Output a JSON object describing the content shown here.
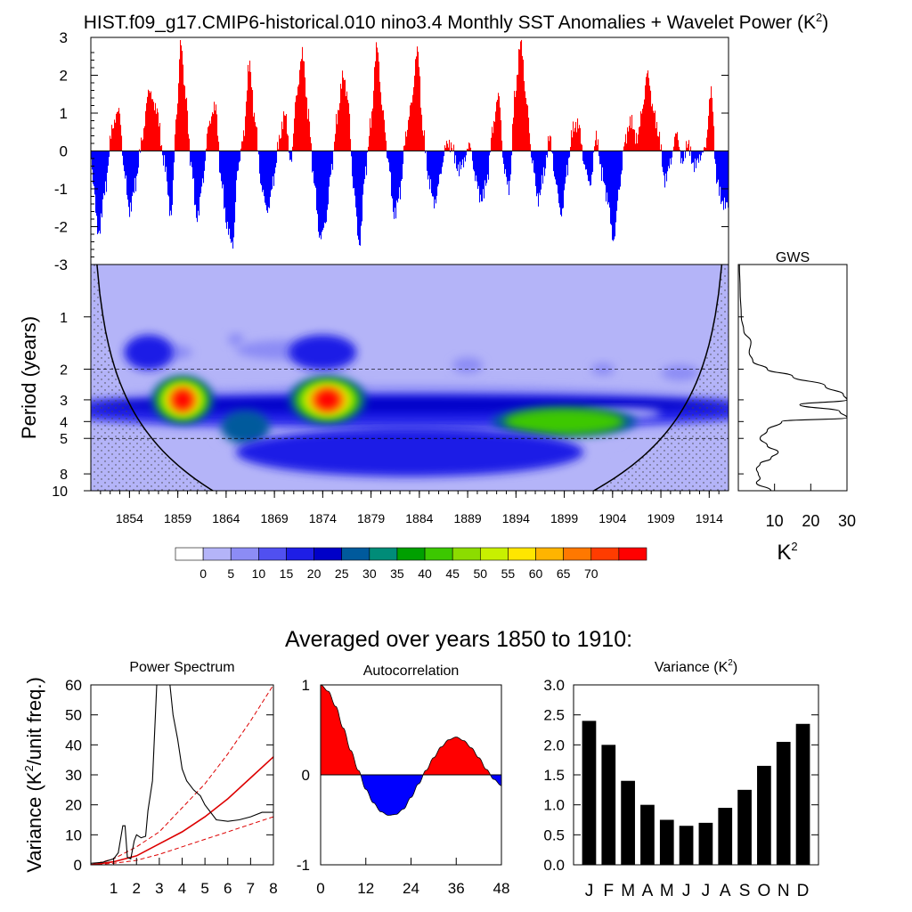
{
  "figure": {
    "title": "HIST.f09_g17.CMIP6-historical.010 nino3.4 Monthly SST Anomalies + Wavelet Power (K",
    "title_sup": "2",
    "title_close": ")",
    "subtitle": "Averaged over years 1850 to 1910:"
  },
  "colors": {
    "positive": "#ff0000",
    "negative": "#0000ff",
    "cone": "#000000",
    "fit_red": "#dd0000"
  },
  "chart_data": [
    {
      "type": "bar",
      "name": "anomaly-timeseries",
      "x_start": 1850,
      "x_end": 1916,
      "ylim": [
        -3,
        3
      ],
      "yticks": [
        "3",
        "2",
        "1",
        "0",
        "-1",
        "-2",
        "-3"
      ],
      "y_tick_values": [
        3,
        2,
        1,
        0,
        -1,
        -2,
        -3
      ],
      "grid": false,
      "values_x": [
        1850.2,
        1850.8,
        1851.5,
        1852.2,
        1852.9,
        1853.5,
        1854.0,
        1854.6,
        1855.3,
        1856.0,
        1856.8,
        1857.6,
        1858.3,
        1858.9,
        1859.3,
        1859.8,
        1860.4,
        1861.0,
        1861.6,
        1862.2,
        1862.9,
        1863.5,
        1864.1,
        1864.7,
        1865.2,
        1865.8,
        1866.4,
        1867.0,
        1867.7,
        1868.3,
        1868.9,
        1869.5,
        1870.1,
        1870.7,
        1871.3,
        1871.9,
        1872.5,
        1873.1,
        1873.7,
        1874.3,
        1874.9,
        1875.5,
        1876.1,
        1876.6,
        1877.2,
        1877.8,
        1878.4,
        1879.0,
        1879.6,
        1880.2,
        1880.8,
        1881.4,
        1882.0,
        1882.6,
        1883.2,
        1883.8,
        1884.4,
        1885.0,
        1885.6,
        1886.2,
        1886.8,
        1887.4,
        1888.0,
        1888.6,
        1889.2,
        1889.8,
        1890.4,
        1891.0,
        1891.6,
        1892.2,
        1892.8,
        1893.3,
        1893.9,
        1894.5,
        1895.1,
        1895.7,
        1896.3,
        1896.9,
        1897.5,
        1898.1,
        1898.7,
        1899.3,
        1899.9,
        1900.5,
        1901.1,
        1901.7,
        1902.3,
        1902.9,
        1903.5,
        1904.1,
        1904.7,
        1905.3,
        1905.9,
        1906.5,
        1907.1,
        1907.6,
        1908.2,
        1908.8,
        1909.4,
        1910.0,
        1910.6,
        1911.2,
        1911.8,
        1912.4,
        1913.0,
        1913.6,
        1914.2,
        1914.8,
        1915.4
      ],
      "values_y": [
        -0.8,
        -2.2,
        -1.0,
        0.6,
        1.1,
        -0.6,
        -1.6,
        -0.9,
        0.3,
        1.6,
        1.1,
        -0.3,
        -1.7,
        1.0,
        2.9,
        1.5,
        -0.4,
        -1.8,
        -0.8,
        0.7,
        1.2,
        -0.8,
        -2.0,
        -2.5,
        -0.5,
        0.4,
        2.3,
        0.8,
        -1.0,
        -1.6,
        -0.8,
        0.3,
        1.0,
        -0.3,
        1.5,
        2.6,
        1.0,
        -0.8,
        -2.3,
        -1.9,
        -0.5,
        0.9,
        2.0,
        1.4,
        -1.0,
        -2.5,
        -0.6,
        0.8,
        2.8,
        1.1,
        -0.3,
        -1.7,
        -1.1,
        0.4,
        1.3,
        2.7,
        0.5,
        -0.8,
        -1.4,
        -0.6,
        0.2,
        0.1,
        -0.5,
        -0.3,
        0.2,
        -0.7,
        -1.3,
        -0.8,
        0.6,
        1.5,
        -0.5,
        -1.0,
        1.5,
        2.9,
        1.3,
        -0.3,
        -1.3,
        -0.6,
        0.4,
        -0.8,
        -1.7,
        -0.5,
        0.6,
        0.7,
        -0.4,
        -0.9,
        0.4,
        -0.6,
        -1.3,
        -2.4,
        -1.0,
        0.3,
        0.8,
        0.3,
        1.1,
        2.1,
        1.1,
        0.4,
        -0.8,
        -0.3,
        0.5,
        -0.3,
        0.2,
        -0.4,
        -0.2,
        0.1,
        1.6,
        -0.8,
        -1.4
      ]
    },
    {
      "type": "heatmap",
      "name": "wavelet-power",
      "ylabel": "Period (years)",
      "xticks": [
        "1854",
        "1859",
        "1864",
        "1869",
        "1874",
        "1879",
        "1884",
        "1889",
        "1894",
        "1899",
        "1904",
        "1909",
        "1914"
      ],
      "x_tick_values": [
        1854,
        1859,
        1864,
        1869,
        1874,
        1879,
        1884,
        1889,
        1894,
        1899,
        1904,
        1909,
        1914
      ],
      "yticks": [
        "1",
        "2",
        "3",
        "4",
        "5",
        "8",
        "10"
      ],
      "y_tick_values": [
        1,
        2,
        3,
        4,
        5,
        8,
        10
      ],
      "ylim": [
        0.5,
        10
      ],
      "y_scale": "log-reversed",
      "background_level": 0,
      "features": [
        {
          "x": 1859.5,
          "period": 3.0,
          "wx": 3.2,
          "wy": 0.09,
          "power": 72
        },
        {
          "x": 1874.5,
          "period": 3.0,
          "wx": 4.0,
          "wy": 0.09,
          "power": 74
        },
        {
          "x": 1866,
          "period": 4.3,
          "wx": 2.5,
          "wy": 0.06,
          "power": 30
        },
        {
          "x": 1899,
          "period": 4.0,
          "wx": 7.5,
          "wy": 0.05,
          "power": 42
        },
        {
          "x": 1856,
          "period": 1.6,
          "wx": 2.5,
          "wy": 0.07,
          "power": 14
        },
        {
          "x": 1874,
          "period": 1.6,
          "wx": 3.5,
          "wy": 0.07,
          "power": 14
        },
        {
          "x": 1883,
          "period": 6.0,
          "wx": 18,
          "wy": 0.1,
          "power": 14
        }
      ]
    },
    {
      "type": "line",
      "name": "global-wavelet-spectrum",
      "title": "GWS",
      "xlabel": "K",
      "xlabel_sup": "2",
      "xticks": [
        "10",
        "20",
        "30"
      ],
      "x_tick_values": [
        10,
        20,
        30
      ],
      "xlim": [
        0,
        30
      ],
      "periods": [
        0.5,
        0.7,
        1.0,
        1.2,
        1.4,
        1.6,
        1.8,
        2.0,
        2.2,
        2.5,
        2.8,
        3.0,
        3.2,
        3.5,
        3.8,
        4.0,
        4.5,
        5.0,
        5.5,
        6.0,
        6.5,
        7.0,
        7.5,
        8.0,
        8.5,
        9.0,
        10.0
      ],
      "power": [
        0.3,
        0.5,
        0.8,
        1.5,
        3.5,
        3.0,
        4.0,
        8.0,
        15.0,
        24.0,
        29.0,
        30.0,
        17.0,
        28.0,
        30.0,
        12.0,
        8.0,
        6.0,
        8.0,
        11.0,
        9.0,
        6.0,
        5.0,
        5.5,
        6.0,
        5.0,
        9.0
      ]
    },
    {
      "type": "line",
      "name": "power-spectrum",
      "title": "Power Spectrum",
      "ylabel": "Variance (K",
      "ylabel_sup": "2",
      "ylabel_close": "/unit freq.)",
      "xticks": [
        "1",
        "2",
        "3",
        "4",
        "5",
        "6",
        "7",
        "8"
      ],
      "x_tick_values": [
        1,
        2,
        3,
        4,
        5,
        6,
        7,
        8
      ],
      "yticks": [
        "0",
        "10",
        "20",
        "30",
        "40",
        "50",
        "60"
      ],
      "y_tick_values": [
        0,
        10,
        20,
        30,
        40,
        50,
        60
      ],
      "xlim": [
        0,
        8
      ],
      "ylim": [
        0,
        60
      ],
      "x": [
        0.0,
        0.5,
        1.0,
        1.2,
        1.4,
        1.5,
        1.6,
        1.75,
        1.9,
        2.0,
        2.2,
        2.4,
        2.5,
        2.7,
        2.9,
        3.0,
        3.2,
        3.4,
        3.6,
        3.8,
        4.0,
        4.2,
        4.5,
        4.8,
        5.0,
        5.5,
        6.0,
        6.5,
        7.0,
        7.5,
        8.0
      ],
      "y": [
        0.5,
        0.8,
        2.0,
        4.0,
        13.0,
        13.0,
        2.5,
        2.0,
        8.0,
        10.0,
        9.0,
        9.5,
        18.0,
        28.0,
        62.0,
        80.0,
        80.0,
        65.0,
        50.0,
        42.0,
        32.0,
        28.0,
        25.0,
        23.0,
        20.0,
        15.0,
        14.5,
        15.0,
        16.0,
        17.5,
        17.5
      ],
      "fit_mid": {
        "x": [
          0,
          1,
          2,
          3,
          4,
          5,
          6,
          7,
          8
        ],
        "y": [
          0,
          1,
          3,
          7,
          11,
          16,
          22,
          29,
          36
        ]
      },
      "fit_upper": {
        "x": [
          0,
          1,
          2,
          3,
          4,
          5,
          6,
          7,
          8
        ],
        "y": [
          0,
          2,
          6,
          11,
          19,
          27,
          37,
          48,
          60
        ]
      },
      "fit_lower": {
        "x": [
          0,
          1,
          2,
          3,
          4,
          5,
          6,
          7,
          8
        ],
        "y": [
          0,
          0.5,
          1.5,
          3.5,
          6,
          8.5,
          11,
          13.5,
          16
        ]
      }
    },
    {
      "type": "area",
      "name": "autocorrelation",
      "title": "Autocorrelation",
      "xticks": [
        "0",
        "12",
        "24",
        "36",
        "48"
      ],
      "x_tick_values": [
        0,
        12,
        24,
        36,
        48
      ],
      "yticks": [
        "1",
        "0",
        "-1"
      ],
      "y_tick_values": [
        1,
        0,
        -1
      ],
      "xlim": [
        0,
        48
      ],
      "ylim": [
        -1,
        1
      ],
      "lag": [
        0,
        2,
        4,
        6,
        8,
        10,
        12,
        14,
        16,
        18,
        20,
        22,
        24,
        26,
        28,
        30,
        32,
        34,
        36,
        38,
        40,
        42,
        44,
        46,
        48
      ],
      "r": [
        1.0,
        0.93,
        0.76,
        0.52,
        0.27,
        0.05,
        -0.16,
        -0.31,
        -0.41,
        -0.45,
        -0.44,
        -0.38,
        -0.25,
        -0.1,
        0.05,
        0.19,
        0.31,
        0.39,
        0.42,
        0.38,
        0.3,
        0.19,
        0.06,
        -0.05,
        -0.12
      ]
    },
    {
      "type": "bar",
      "name": "monthly-variance",
      "title": "Variance (K",
      "title_sup": "2",
      "title_close": ")",
      "categories": [
        "J",
        "F",
        "M",
        "A",
        "M",
        "J",
        "J",
        "A",
        "S",
        "O",
        "N",
        "D"
      ],
      "values": [
        2.4,
        2.0,
        1.4,
        1.0,
        0.75,
        0.65,
        0.7,
        0.95,
        1.25,
        1.65,
        2.05,
        2.35
      ],
      "yticks": [
        "3.0",
        "2.5",
        "2.0",
        "1.5",
        "1.0",
        "0.5",
        "0.0"
      ],
      "y_tick_values": [
        3.0,
        2.5,
        2.0,
        1.5,
        1.0,
        0.5,
        0.0
      ],
      "ylim": [
        0,
        3
      ]
    }
  ],
  "colorbar": {
    "labels": [
      "0",
      "5",
      "10",
      "15",
      "20",
      "25",
      "30",
      "35",
      "40",
      "45",
      "50",
      "55",
      "60",
      "65",
      "70"
    ],
    "colors": [
      "#ffffff",
      "#b4b4f8",
      "#8c8cf5",
      "#5050f0",
      "#1e1ee6",
      "#0000c8",
      "#005a9c",
      "#008c78",
      "#00a000",
      "#3cc800",
      "#8cdc00",
      "#c8f000",
      "#ffe600",
      "#ffb400",
      "#ff7800",
      "#ff3c00",
      "#ff0000"
    ]
  }
}
